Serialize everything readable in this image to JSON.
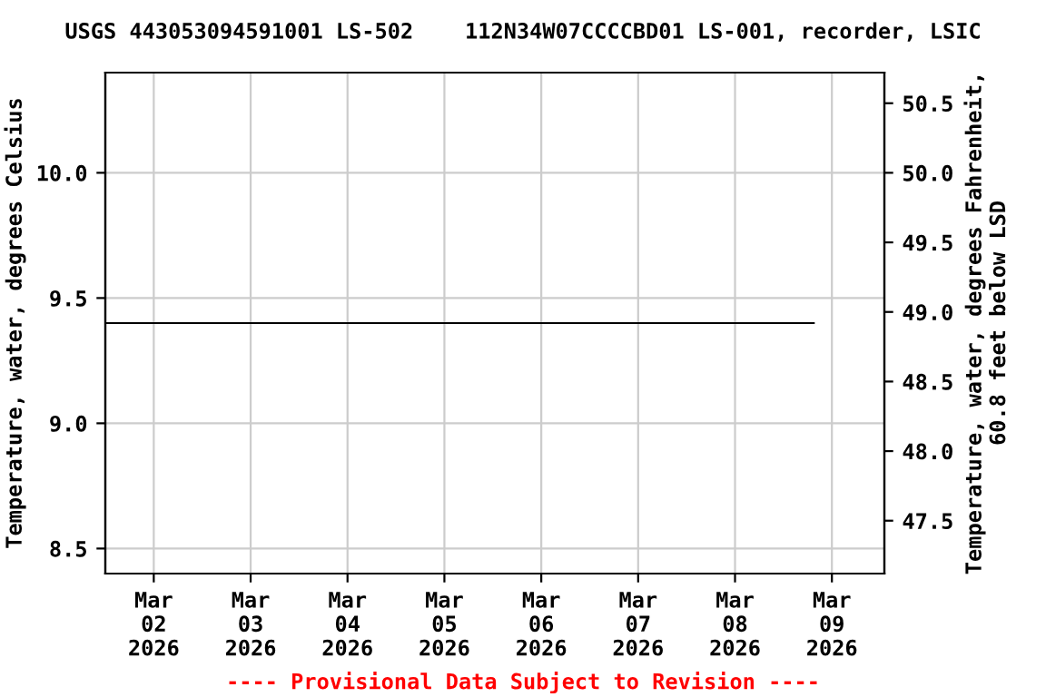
{
  "chart_data": {
    "type": "line",
    "title": "USGS 443053094591001 LS-502    112N34W07CCCCBD01 LS-001, recorder, LSIC",
    "ylabel": "Temperature, water, degrees Celsius",
    "y2label": "Temperature, water, degrees Fahrenheit,\n60.8 feet below LSD",
    "annotations": [
      "---- Provisional Data Subject to Revision ----"
    ],
    "series": [
      {
        "x": [
          "2026-03-01T12:00",
          "2026-03-08T19:30"
        ],
        "values": [
          9.4,
          9.4
        ],
        "color": "#000000"
      }
    ],
    "xlim": [
      "2026-03-01T12:00",
      "2026-03-09T13:00"
    ],
    "xticks": [
      {
        "value": "2026-03-02",
        "label": "Mar\n02\n2026"
      },
      {
        "value": "2026-03-03",
        "label": "Mar\n03\n2026"
      },
      {
        "value": "2026-03-04",
        "label": "Mar\n04\n2026"
      },
      {
        "value": "2026-03-05",
        "label": "Mar\n05\n2026"
      },
      {
        "value": "2026-03-06",
        "label": "Mar\n06\n2026"
      },
      {
        "value": "2026-03-07",
        "label": "Mar\n07\n2026"
      },
      {
        "value": "2026-03-08",
        "label": "Mar\n08\n2026"
      },
      {
        "value": "2026-03-09",
        "label": "Mar\n09\n2026"
      }
    ],
    "ylim": [
      8.4,
      10.4
    ],
    "yticks": [
      {
        "value": 8.5,
        "label": "8.5"
      },
      {
        "value": 9.0,
        "label": "9.0"
      },
      {
        "value": 9.5,
        "label": "9.5"
      },
      {
        "value": 10.0,
        "label": "10.0"
      }
    ],
    "y2lim": [
      47.12,
      50.72
    ],
    "y2ticks": [
      47.5,
      {
        "value": 48.0,
        "label": "48.0"
      },
      48.5,
      {
        "value": 49.0,
        "label": "49.0"
      },
      49.5,
      {
        "value": 50.0,
        "label": "50.0"
      },
      50.5
    ],
    "grid": true,
    "legend": false
  }
}
